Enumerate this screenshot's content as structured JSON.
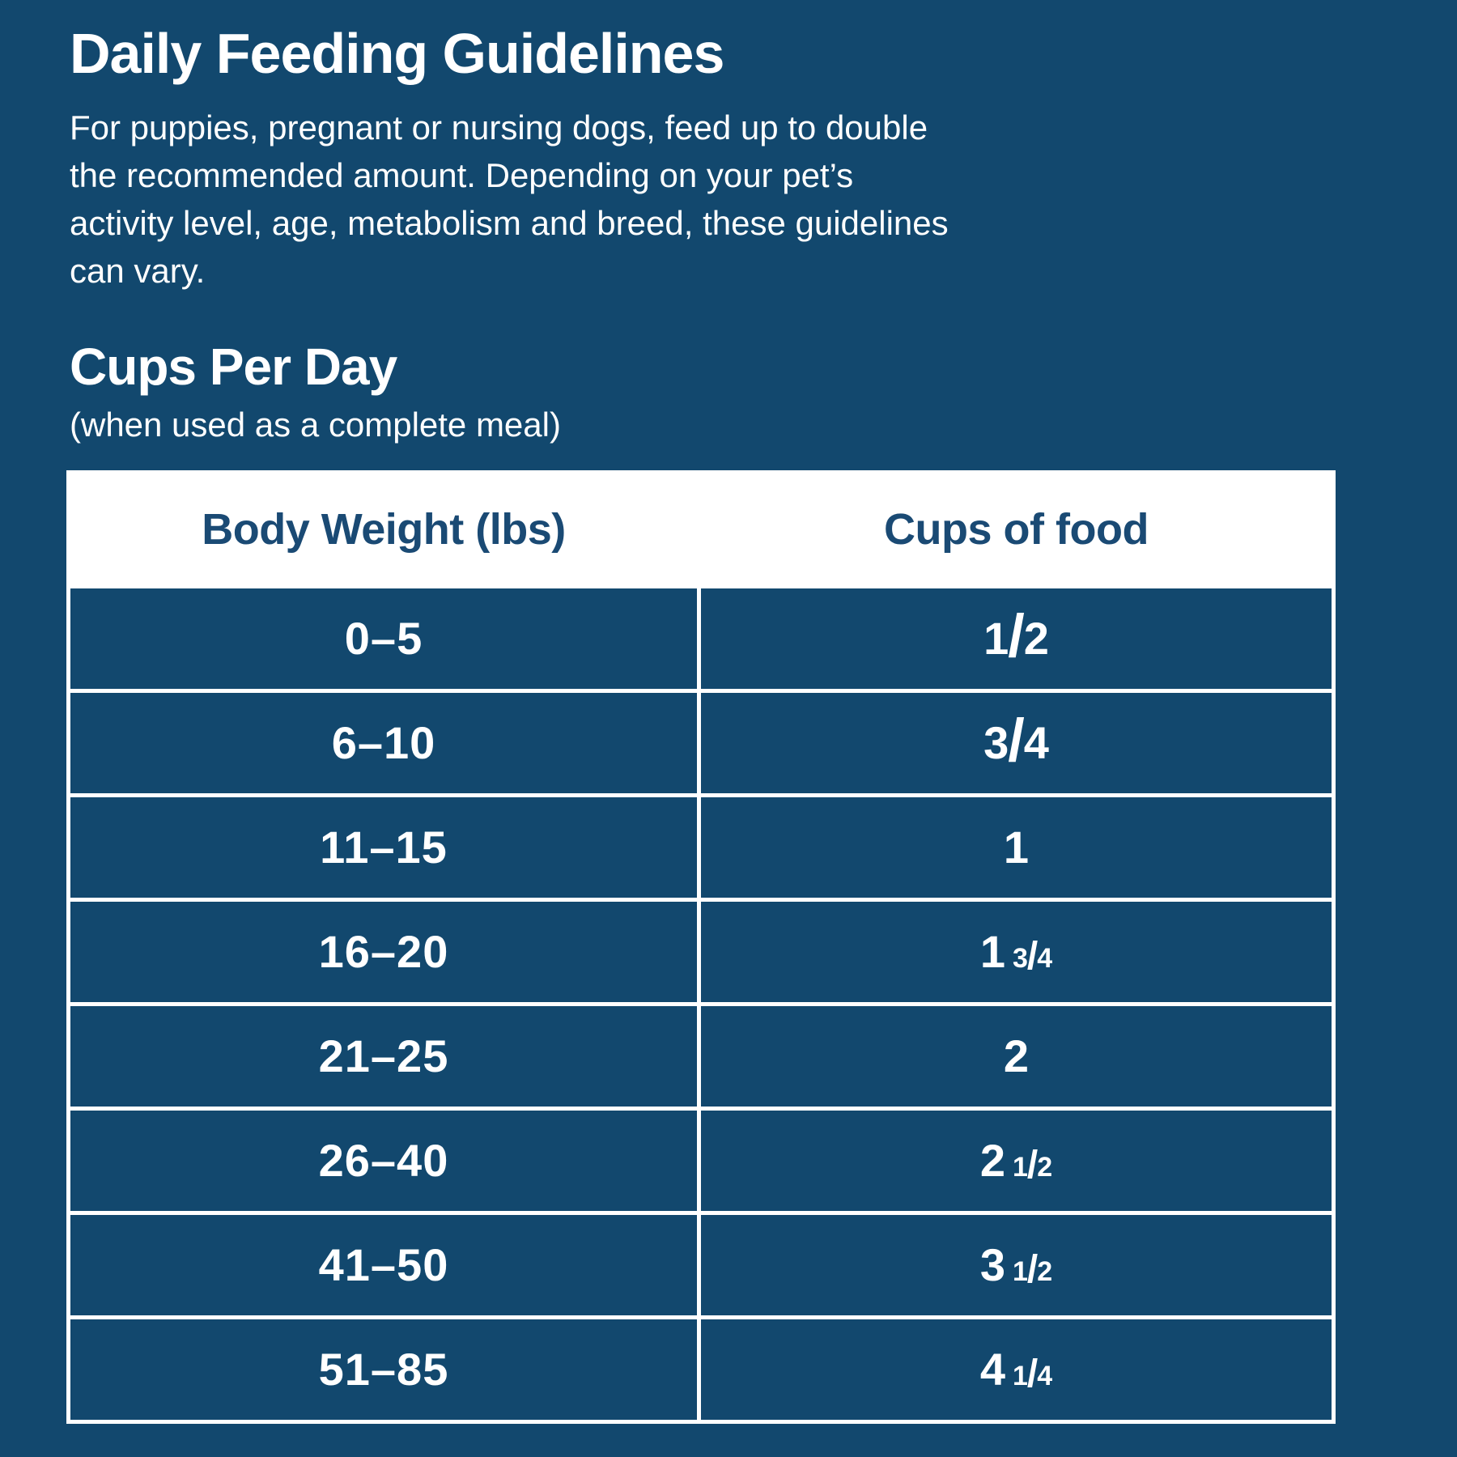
{
  "page": {
    "title": "Daily Feeding Guidelines",
    "intro": "For puppies, pregnant or nursing dogs, feed up to double\nthe recommended amount. Depending on your pet’s\nactivity level, age, metabolism and breed, these guidelines\ncan vary.",
    "section_heading": "Cups Per Day",
    "section_subheading": "(when used as a complete meal)"
  },
  "colors": {
    "navy_background": "#12486E",
    "header_text_navy": "#1A4A74",
    "white": "#FFFFFF"
  },
  "table": {
    "columns": [
      "Body Weight (lbs)",
      "Cups of food"
    ],
    "rows": [
      {
        "weight": "0–5",
        "cups_whole": "",
        "cups_frac": "1/2"
      },
      {
        "weight": "6–10",
        "cups_whole": "",
        "cups_frac": "3/4"
      },
      {
        "weight": "11–15",
        "cups_whole": "1",
        "cups_frac": ""
      },
      {
        "weight": "16–20",
        "cups_whole": "1",
        "cups_frac": "3/4"
      },
      {
        "weight": "21–25",
        "cups_whole": "2",
        "cups_frac": ""
      },
      {
        "weight": "26–40",
        "cups_whole": "2",
        "cups_frac": "1/2"
      },
      {
        "weight": "41–50",
        "cups_whole": "3",
        "cups_frac": "1/2"
      },
      {
        "weight": "51–85",
        "cups_whole": "4",
        "cups_frac": "1/4"
      }
    ]
  }
}
